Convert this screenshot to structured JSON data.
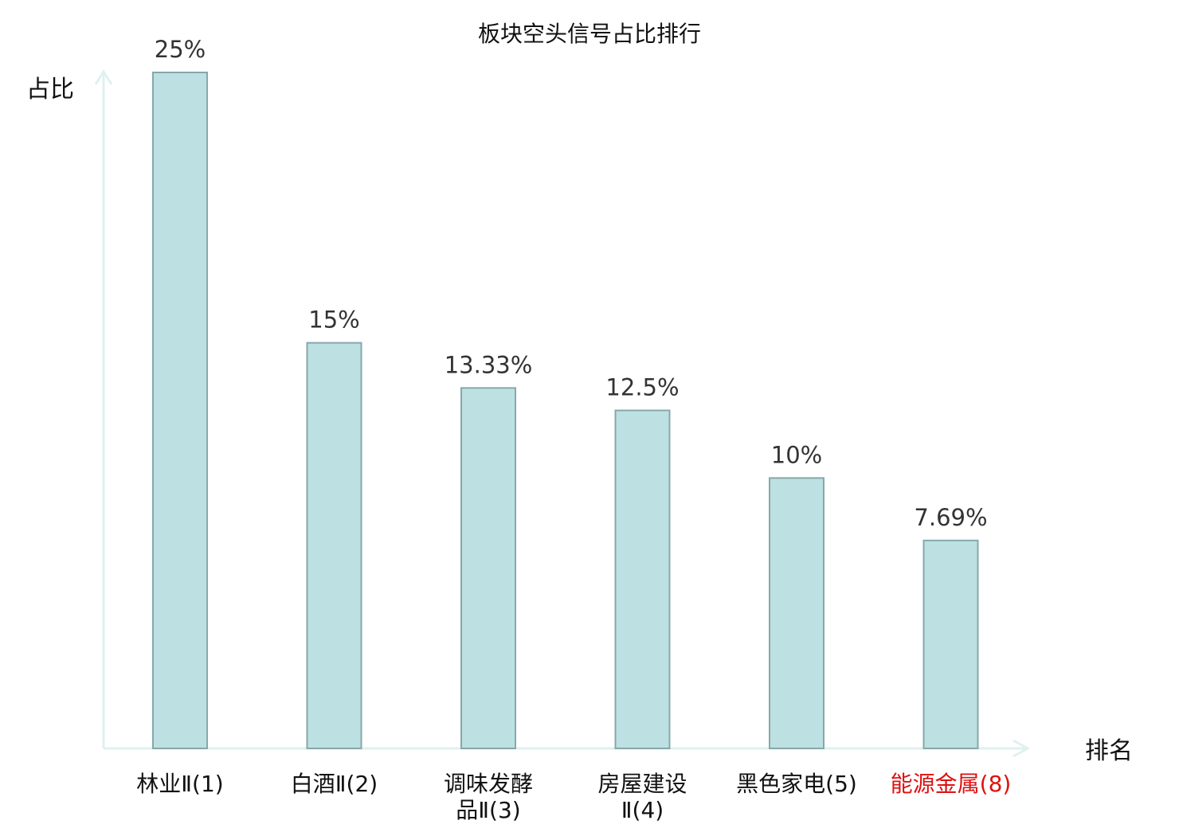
{
  "chart_data": {
    "type": "bar",
    "title": "板块空头信号占比排行",
    "ylabel": "占比",
    "xlabel": "排名",
    "ylim": [
      0,
      25
    ],
    "grid": false,
    "colors": {
      "bar_fill": "#bde1e3",
      "bar_stroke": "#86a8aa",
      "axis": "#dff1ef",
      "highlight": "#dd1111"
    },
    "categories": [
      {
        "lines": [
          "林业Ⅱ(1)"
        ],
        "highlight": false
      },
      {
        "lines": [
          "白酒Ⅱ(2)"
        ],
        "highlight": false
      },
      {
        "lines": [
          "调味发酵",
          "品Ⅱ(3)"
        ],
        "highlight": false
      },
      {
        "lines": [
          "房屋建设",
          "Ⅱ(4)"
        ],
        "highlight": false
      },
      {
        "lines": [
          "黑色家电(5)"
        ],
        "highlight": false
      },
      {
        "lines": [
          "能源金属(8)"
        ],
        "highlight": true
      }
    ],
    "values": [
      25,
      15,
      13.33,
      12.5,
      10,
      7.69
    ],
    "value_labels": [
      "25%",
      "15%",
      "13.33%",
      "12.5%",
      "10%",
      "7.69%"
    ]
  }
}
